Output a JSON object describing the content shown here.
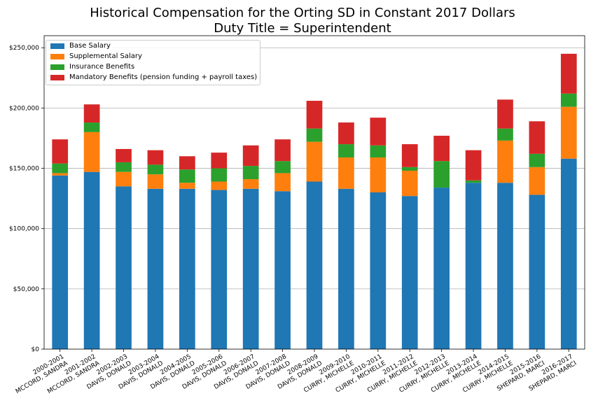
{
  "chart_data": {
    "type": "bar",
    "stacked": true,
    "title": "Historical Compensation for the Orting SD in Constant 2017 Dollars",
    "subtitle": "Duty Title = Superintendent",
    "xlabel": "",
    "ylabel": "",
    "ylim": [
      0,
      260000
    ],
    "yticks": [
      0,
      50000,
      100000,
      150000,
      200000,
      250000
    ],
    "ytick_labels": [
      "$0",
      "$50,000",
      "$100,000",
      "$150,000",
      "$200,000",
      "$250,000"
    ],
    "grid": "horizontal",
    "legend_position": "top-left",
    "categories": [
      [
        "2000-2001",
        "MCCORD, SANDRA"
      ],
      [
        "2001-2002",
        "MCCORD, SANDRA"
      ],
      [
        "2002-2003",
        "DAVIS, DONALD"
      ],
      [
        "2003-2004",
        "DAVIS, DONALD"
      ],
      [
        "2004-2005",
        "DAVIS, DONALD"
      ],
      [
        "2005-2006",
        "DAVIS, DONALD"
      ],
      [
        "2006-2007",
        "DAVIS, DONALD"
      ],
      [
        "2007-2008",
        "DAVIS, DONALD"
      ],
      [
        "2008-2009",
        "DAVIS, DONALD"
      ],
      [
        "2009-2010",
        "CURRY, MICHELLE"
      ],
      [
        "2010-2011",
        "CURRY, MICHELLE"
      ],
      [
        "2011-2012",
        "CURRY, MICHELLE"
      ],
      [
        "2012-2013",
        "CURRY, MICHELLE"
      ],
      [
        "2013-2014",
        "CURRY, MICHELLE"
      ],
      [
        "2014-2015",
        "CURRY, MICHELLE"
      ],
      [
        "2015-2016",
        "SHEPARD, MARCI"
      ],
      [
        "2016-2017",
        "SHEPARD, MARCI"
      ]
    ],
    "series": [
      {
        "name": "Base Salary",
        "color": "#1f77b4",
        "values": [
          144000,
          147000,
          135000,
          133000,
          133000,
          132000,
          133000,
          131000,
          139000,
          133000,
          130000,
          127000,
          134000,
          138000,
          138000,
          128000,
          158000
        ]
      },
      {
        "name": "Supplemental Salary",
        "color": "#ff7f0e",
        "values": [
          2000,
          33000,
          12000,
          12000,
          5000,
          7000,
          8000,
          15000,
          33000,
          26000,
          29000,
          21000,
          0,
          0,
          35000,
          23000,
          43000
        ]
      },
      {
        "name": "Insurance Benefits",
        "color": "#2ca02c",
        "values": [
          8000,
          8000,
          8000,
          8000,
          11000,
          11000,
          11000,
          10000,
          11000,
          11000,
          10000,
          3000,
          22000,
          2000,
          10000,
          11000,
          11000
        ]
      },
      {
        "name": "Mandatory Benefits (pension funding + payroll taxes)",
        "color": "#d62728",
        "values": [
          20000,
          15000,
          11000,
          12000,
          11000,
          13000,
          17000,
          18000,
          23000,
          18000,
          23000,
          19000,
          21000,
          25000,
          24000,
          27000,
          33000
        ]
      }
    ]
  }
}
